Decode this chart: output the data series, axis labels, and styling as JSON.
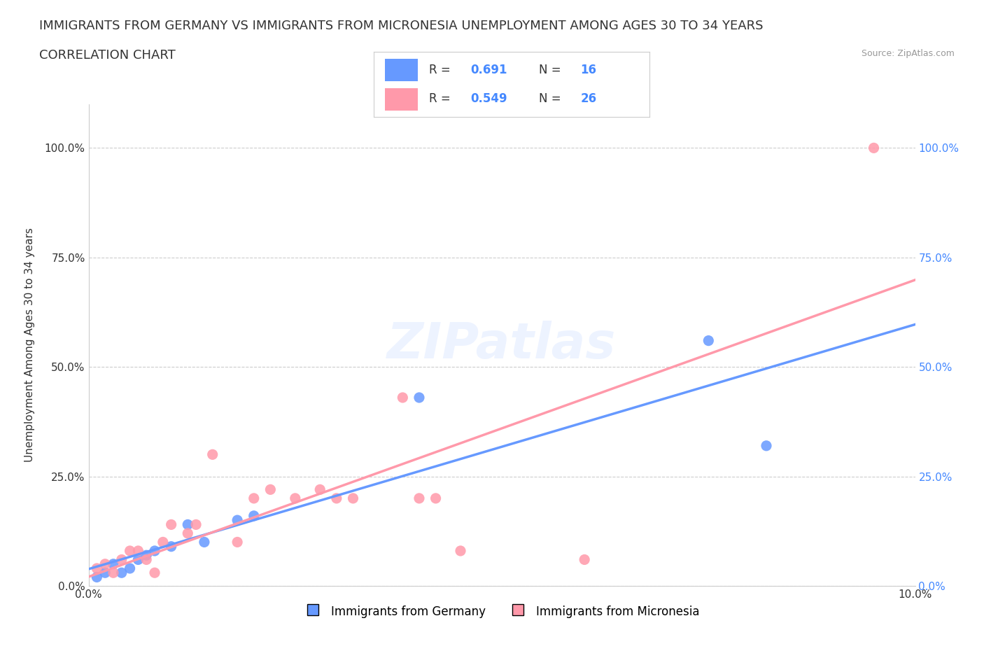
{
  "title_line1": "IMMIGRANTS FROM GERMANY VS IMMIGRANTS FROM MICRONESIA UNEMPLOYMENT AMONG AGES 30 TO 34 YEARS",
  "title_line2": "CORRELATION CHART",
  "source_text": "Source: ZipAtlas.com",
  "xlabel": "",
  "ylabel": "Unemployment Among Ages 30 to 34 years",
  "xlim": [
    0.0,
    0.1
  ],
  "ylim": [
    0.0,
    1.1
  ],
  "x_ticks": [
    0.0,
    0.02,
    0.04,
    0.06,
    0.08,
    0.1
  ],
  "x_tick_labels": [
    "0.0%",
    "",
    "",
    "",
    "",
    "10.0%"
  ],
  "y_ticks": [
    0.0,
    0.25,
    0.5,
    0.75,
    1.0
  ],
  "y_tick_labels": [
    "0.0%",
    "25.0%",
    "50.0%",
    "75.0%",
    "100.0%"
  ],
  "germany_color": "#6699ff",
  "micronesia_color": "#ff99aa",
  "germany_R": 0.691,
  "germany_N": 16,
  "micronesia_R": 0.549,
  "micronesia_N": 26,
  "watermark": "ZIPatlas",
  "germany_x": [
    0.001,
    0.002,
    0.003,
    0.004,
    0.005,
    0.006,
    0.007,
    0.008,
    0.01,
    0.012,
    0.014,
    0.018,
    0.02,
    0.04,
    0.075,
    0.082
  ],
  "germany_y": [
    0.02,
    0.03,
    0.05,
    0.03,
    0.04,
    0.06,
    0.07,
    0.08,
    0.09,
    0.14,
    0.1,
    0.15,
    0.16,
    0.43,
    0.56,
    0.32
  ],
  "micronesia_x": [
    0.001,
    0.002,
    0.003,
    0.004,
    0.005,
    0.006,
    0.007,
    0.008,
    0.009,
    0.01,
    0.012,
    0.013,
    0.015,
    0.018,
    0.02,
    0.022,
    0.025,
    0.028,
    0.03,
    0.032,
    0.038,
    0.04,
    0.042,
    0.045,
    0.06,
    0.095
  ],
  "micronesia_y": [
    0.04,
    0.05,
    0.03,
    0.06,
    0.08,
    0.08,
    0.06,
    0.03,
    0.1,
    0.14,
    0.12,
    0.14,
    0.3,
    0.1,
    0.2,
    0.22,
    0.2,
    0.22,
    0.2,
    0.2,
    0.43,
    0.2,
    0.2,
    0.08,
    0.06,
    1.0
  ],
  "background_color": "#ffffff",
  "grid_color": "#cccccc",
  "title_fontsize": 13,
  "subtitle_fontsize": 13,
  "axis_label_fontsize": 11,
  "tick_fontsize": 11,
  "legend_fontsize": 12
}
